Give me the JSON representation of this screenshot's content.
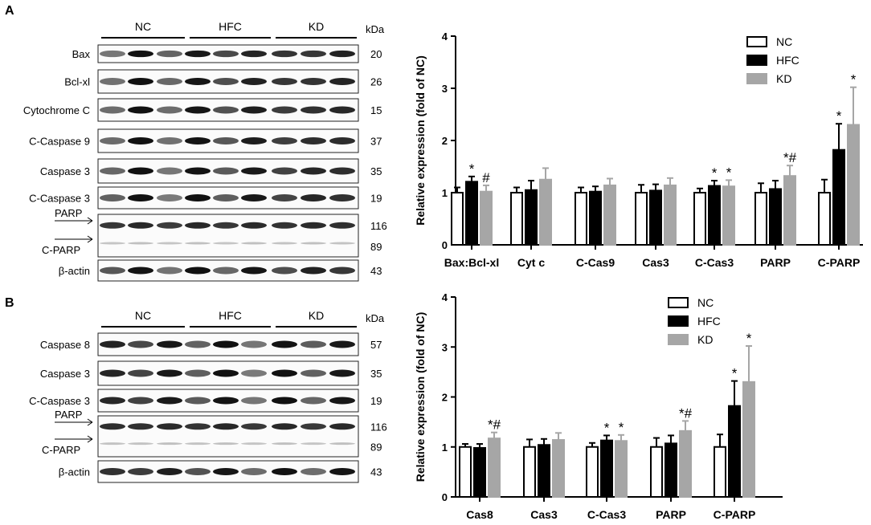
{
  "figure": {
    "panels": [
      {
        "letter": "A",
        "groups": [
          "NC",
          "HFC",
          "KD"
        ],
        "kda_label": "kDa",
        "blots": [
          {
            "label": "Bax",
            "kda": "20"
          },
          {
            "label": "Bcl-xl",
            "kda": "26"
          },
          {
            "label": "Cytochrome C",
            "kda": "15"
          },
          {
            "label": "C-Caspase 9",
            "kda": "37"
          },
          {
            "label": "Caspase 3",
            "kda": "35"
          },
          {
            "label": "C-Caspase 3",
            "kda": "19"
          },
          {
            "label": "PARP",
            "label2": "C-PARP",
            "kda": "116",
            "kda2": "89"
          },
          {
            "label": "β-actin",
            "kda": "43"
          }
        ]
      },
      {
        "letter": "B",
        "groups": [
          "NC",
          "HFC",
          "KD"
        ],
        "kda_label": "kDa",
        "blots": [
          {
            "label": "Caspase 8",
            "kda": "57"
          },
          {
            "label": "Caspase 3",
            "kda": "35"
          },
          {
            "label": "C-Caspase 3",
            "kda": "19"
          },
          {
            "label": "PARP",
            "label2": "C-PARP",
            "kda": "116",
            "kda2": "89"
          },
          {
            "label": "β-actin",
            "kda": "43"
          }
        ]
      }
    ]
  },
  "chart_data": [
    {
      "type": "bar",
      "ylabel": "Relative expression (fold of NC)",
      "ylim": [
        0,
        4
      ],
      "yticks": [
        "0",
        "1",
        "2",
        "3",
        "4"
      ],
      "legend_position": "top-right",
      "categories": [
        "Bax:Bcl-xl",
        "Cyt c",
        "C-Cas9",
        "Cas3",
        "C-Cas3",
        "PARP",
        "C-PARP"
      ],
      "series": [
        {
          "name": "NC",
          "color": "#ffffff",
          "values": [
            1.0,
            1.0,
            1.0,
            1.0,
            1.0,
            1.0,
            1.0
          ],
          "errors": [
            0.1,
            0.1,
            0.1,
            0.15,
            0.08,
            0.18,
            0.25
          ]
        },
        {
          "name": "HFC",
          "color": "#000000",
          "values": [
            1.21,
            1.05,
            1.02,
            1.04,
            1.13,
            1.07,
            1.82
          ],
          "errors": [
            0.1,
            0.18,
            0.1,
            0.12,
            0.1,
            0.16,
            0.5
          ]
        },
        {
          "name": "KD",
          "color": "#a6a6a6",
          "values": [
            1.02,
            1.25,
            1.14,
            1.14,
            1.12,
            1.32,
            2.3
          ],
          "errors": [
            0.12,
            0.22,
            0.13,
            0.14,
            0.12,
            0.2,
            0.72
          ]
        }
      ],
      "annotations": [
        {
          "series": 1,
          "category": 0,
          "text": "*"
        },
        {
          "series": 2,
          "category": 0,
          "text": "#"
        },
        {
          "series": 1,
          "category": 4,
          "text": "*"
        },
        {
          "series": 2,
          "category": 4,
          "text": "*"
        },
        {
          "series": 2,
          "category": 5,
          "text": "*#"
        },
        {
          "series": 1,
          "category": 6,
          "text": "*"
        },
        {
          "series": 2,
          "category": 6,
          "text": "*"
        }
      ]
    },
    {
      "type": "bar",
      "ylabel": "Relative expression (fold of NC)",
      "ylim": [
        0,
        4
      ],
      "yticks": [
        "0",
        "1",
        "2",
        "3",
        "4"
      ],
      "legend_position": "top-right",
      "categories": [
        "Cas8",
        "Cas3",
        "C-Cas3",
        "PARP",
        "C-PARP"
      ],
      "series": [
        {
          "name": "NC",
          "color": "#ffffff",
          "values": [
            1.0,
            1.0,
            1.0,
            1.0,
            1.0
          ],
          "errors": [
            0.06,
            0.15,
            0.08,
            0.18,
            0.25
          ]
        },
        {
          "name": "HFC",
          "color": "#000000",
          "values": [
            0.98,
            1.04,
            1.13,
            1.07,
            1.82
          ],
          "errors": [
            0.08,
            0.12,
            0.1,
            0.16,
            0.5
          ]
        },
        {
          "name": "KD",
          "color": "#a6a6a6",
          "values": [
            1.17,
            1.14,
            1.12,
            1.32,
            2.3
          ],
          "errors": [
            0.12,
            0.14,
            0.12,
            0.2,
            0.72
          ]
        }
      ],
      "annotations": [
        {
          "series": 2,
          "category": 0,
          "text": "*#"
        },
        {
          "series": 1,
          "category": 2,
          "text": "*"
        },
        {
          "series": 2,
          "category": 2,
          "text": "*"
        },
        {
          "series": 2,
          "category": 3,
          "text": "*#"
        },
        {
          "series": 1,
          "category": 4,
          "text": "*"
        },
        {
          "series": 2,
          "category": 4,
          "text": "*"
        }
      ]
    }
  ]
}
